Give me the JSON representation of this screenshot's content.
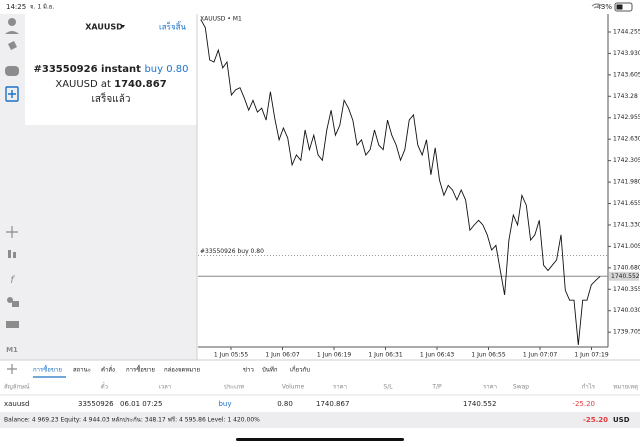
{
  "status_bar": {
    "time": "14:25",
    "date": "จ. 1 มิ.ย.",
    "battery": "43%"
  },
  "sidebar": {
    "timeframe": "M1"
  },
  "order_panel": {
    "symbol": "XAUUSD",
    "done_button": "เสร็จสิ้น",
    "order_text": "#33550926 instant",
    "action": "buy 0.80",
    "price_prefix": "XAUUSD at",
    "price": "1740.867",
    "status": "เสร็จแล้ว"
  },
  "chart": {
    "type": "line",
    "title": "XAUUSD • M1",
    "color": "#111111",
    "ylim": [
      1739.48,
      1744.467
    ],
    "yticks": [
      1744.255,
      {
        "value": 1743.93,
        "label": "1743.930"
      },
      1743.605,
      1743.28,
      1742.955,
      {
        "value": 1742.63,
        "label": "1742.630"
      },
      1742.305,
      {
        "value": 1741.98,
        "label": "1741.980"
      },
      1741.655,
      {
        "value": 1741.33,
        "label": "1741.330"
      },
      1741.005,
      {
        "value": 1740.68,
        "label": "1740.680"
      },
      1740.355,
      {
        "value": 1740.03,
        "label": "1740.030"
      },
      1739.705
    ],
    "x_labels": [
      "1 Jun 05:55",
      "1 Jun 06:07",
      "1 Jun 06:19",
      "1 Jun 06:31",
      "1 Jun 06:43",
      "1 Jun 06:55",
      "1 Jun 07:07",
      "1 Jun 07:19"
    ],
    "values": [
      1744.44,
      1744.32,
      1743.83,
      1743.8,
      1743.98,
      1743.71,
      1743.8,
      1743.3,
      1743.38,
      1743.41,
      1743.25,
      1743.07,
      1743.22,
      1743.04,
      1743.1,
      1742.92,
      1743.35,
      1742.95,
      1742.62,
      1742.8,
      1742.65,
      1742.24,
      1742.39,
      1742.31,
      1742.77,
      1742.47,
      1742.69,
      1742.39,
      1742.31,
      1742.77,
      1743.07,
      1742.69,
      1742.84,
      1743.22,
      1743.1,
      1742.92,
      1742.54,
      1742.62,
      1742.39,
      1742.47,
      1742.77,
      1742.54,
      1742.47,
      1742.92,
      1742.69,
      1742.54,
      1742.31,
      1742.47,
      1742.92,
      1743.0,
      1742.54,
      1742.39,
      1742.62,
      1742.09,
      1742.5,
      1742.01,
      1741.78,
      1741.93,
      1741.86,
      1741.71,
      1741.86,
      1741.71,
      1741.25,
      1741.33,
      1741.4,
      1741.33,
      1741.18,
      1740.95,
      1741.02,
      1740.64,
      1740.27,
      1741.1,
      1741.48,
      1741.33,
      1741.78,
      1741.63,
      1741.1,
      1741.18,
      1741.4,
      1740.72,
      1740.64,
      1740.72,
      1740.8,
      1741.18,
      1740.34,
      1740.19,
      1740.19,
      1739.51,
      1740.19,
      1740.19,
      1740.42,
      1740.49,
      1740.55
    ],
    "order_line": {
      "label": "#33550926 buy 0.80",
      "value": 1740.867
    },
    "current_price": 1740.552
  },
  "tabs": [
    "การซื้อขาย",
    "สถานะ",
    "คำสั่ง",
    "การซื้อขาย",
    "กล่องจดหมาย",
    "ข่าว",
    "บันทึก",
    "เกี่ยวกับ"
  ],
  "table": {
    "headers": [
      "สัญลักษณ์",
      "ตั๋ว",
      "เวลา",
      "ประเภท",
      "Volume",
      "ราคา",
      "S/L",
      "T/P",
      "ราคา",
      "Swap",
      "กำไร",
      "หมายเหตุ"
    ],
    "row": {
      "symbol": "xauusd",
      "ticket": "33550926",
      "time": "06.01 07:25",
      "type": "buy",
      "volume": "0.80",
      "open_price": "1740.867",
      "price": "1740.552",
      "profit": "-25.20"
    }
  },
  "footer": {
    "summary": "Balance: 4 969.23 Equity: 4 944.03 หลักประกัน: 348.17 ฟรี: 4 595.86 Level: 1 420.00%",
    "profit": "-25.20",
    "currency": "USD"
  }
}
